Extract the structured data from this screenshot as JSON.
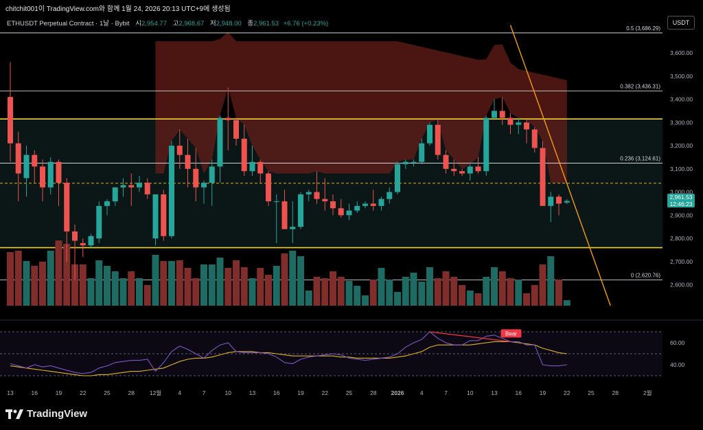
{
  "caption": "chitchit001이 TradingView.com와 함께 1월 24, 2026 20:13 UTC+9에 생성됨",
  "legend": {
    "symbol": "ETHUSDT Perpetual Contract · 1날 · Bybit",
    "open_label": "시",
    "open": "2,954.77",
    "high_label": "고",
    "high": "2,968.67",
    "low_label": "저",
    "low": "2,948.00",
    "close_label": "종",
    "close": "2,961.53",
    "change": "+6.76 (+0.23%)"
  },
  "currency_button": "USDT",
  "price_tag": {
    "price": "2,961.53",
    "countdown": "12:46:23"
  },
  "brand": {
    "name": "TradingView"
  },
  "colors": {
    "up": "#26a69a",
    "down": "#ef5350",
    "fib": "#d1d4dc",
    "channel": "#f2d13b",
    "trend": "#f59e0b",
    "rsi": "#7e57c2",
    "rsi_ma": "#e0b422",
    "bear_label": "#f23645"
  },
  "chart_data": {
    "type": "candlestick",
    "price_axis": {
      "ylim": [
        2510,
        3680
      ],
      "ticks": [
        2600,
        2700,
        2800,
        2900,
        3000,
        3100,
        3200,
        3300,
        3400,
        3500,
        3600
      ],
      "tick_labels": [
        "2,600.00",
        "2,700.00",
        "2,800.00",
        "2,900.00",
        "3,000.00",
        "3,100.00",
        "3,200.00",
        "3,300.00",
        "3,400.00",
        "3,500.00",
        "3,600.00"
      ]
    },
    "time_axis": {
      "labels": [
        {
          "i": 0,
          "t": "13"
        },
        {
          "i": 3,
          "t": "16"
        },
        {
          "i": 6,
          "t": "19"
        },
        {
          "i": 9,
          "t": "22"
        },
        {
          "i": 12,
          "t": "25"
        },
        {
          "i": 15,
          "t": "28"
        },
        {
          "i": 18,
          "t": "12월"
        },
        {
          "i": 21,
          "t": "4"
        },
        {
          "i": 24,
          "t": "7"
        },
        {
          "i": 27,
          "t": "10"
        },
        {
          "i": 30,
          "t": "13"
        },
        {
          "i": 33,
          "t": "16"
        },
        {
          "i": 36,
          "t": "19"
        },
        {
          "i": 39,
          "t": "22"
        },
        {
          "i": 42,
          "t": "25"
        },
        {
          "i": 45,
          "t": "28"
        },
        {
          "i": 48,
          "t": "2026"
        },
        {
          "i": 51,
          "t": "4"
        },
        {
          "i": 54,
          "t": "7"
        },
        {
          "i": 57,
          "t": "10"
        },
        {
          "i": 60,
          "t": "13"
        },
        {
          "i": 63,
          "t": "16"
        },
        {
          "i": 66,
          "t": "19"
        },
        {
          "i": 69,
          "t": "22"
        },
        {
          "i": 72,
          "t": "25"
        },
        {
          "i": 75,
          "t": "28"
        },
        {
          "i": 79,
          "t": "2월"
        }
      ]
    },
    "fib_levels": [
      {
        "label": "0.5 (3,686.29)",
        "price": 3686.29
      },
      {
        "label": "0.382 (3,436.31)",
        "price": 3436.31
      },
      {
        "label": "0.236 (3,124.61)",
        "price": 3124.61
      },
      {
        "label": "0 (2,620.76)",
        "price": 2620.76
      }
    ],
    "channel_lines": [
      3315,
      2760
    ],
    "dashed_level": 3038,
    "trendline": [
      {
        "i": 62,
        "price": 3720
      },
      {
        "i": 74.5,
        "price": 2500
      }
    ],
    "ohlc": [
      [
        3410,
        3560,
        3130,
        3210
      ],
      [
        3210,
        3260,
        2960,
        3080
      ],
      [
        3060,
        3200,
        2980,
        3160
      ],
      [
        3160,
        3180,
        3040,
        3110
      ],
      [
        3110,
        3140,
        2960,
        3020
      ],
      [
        3020,
        3150,
        2990,
        3130
      ],
      [
        3130,
        3140,
        2940,
        3040
      ],
      [
        3040,
        3060,
        2700,
        2830
      ],
      [
        2830,
        2860,
        2620,
        2790
      ],
      [
        2780,
        2800,
        2720,
        2770
      ],
      [
        2770,
        2820,
        2760,
        2810
      ],
      [
        2800,
        2960,
        2780,
        2940
      ],
      [
        2940,
        2970,
        2900,
        2960
      ],
      [
        2960,
        3020,
        2940,
        3020
      ],
      [
        3020,
        3060,
        2980,
        3030
      ],
      [
        3030,
        3080,
        2940,
        3020
      ],
      [
        3020,
        3070,
        3000,
        3040
      ],
      [
        3040,
        3060,
        2970,
        2990
      ],
      [
        2800,
        2990,
        2770,
        2990
      ],
      [
        2990,
        3010,
        2790,
        2810
      ],
      [
        2810,
        3220,
        2800,
        3200
      ],
      [
        3200,
        3270,
        3100,
        3160
      ],
      [
        3160,
        3230,
        3020,
        3100
      ],
      [
        3100,
        3190,
        2960,
        3020
      ],
      [
        3020,
        3050,
        2950,
        3040
      ],
      [
        3040,
        3140,
        2940,
        3110
      ],
      [
        3110,
        3330,
        3040,
        3320
      ],
      [
        3320,
        3450,
        3180,
        3310
      ],
      [
        3310,
        3320,
        3200,
        3230
      ],
      [
        3230,
        3290,
        3070,
        3090
      ],
      [
        3090,
        3200,
        3070,
        3130
      ],
      [
        3130,
        3140,
        3040,
        3080
      ],
      [
        3080,
        3090,
        2940,
        2960
      ],
      [
        2960,
        2990,
        2780,
        2960
      ],
      [
        2960,
        3010,
        2840,
        2840
      ],
      [
        2840,
        2960,
        2780,
        2850
      ],
      [
        2850,
        3000,
        2840,
        2990
      ],
      [
        2990,
        3010,
        2960,
        3000
      ],
      [
        3000,
        3090,
        2950,
        2970
      ],
      [
        2970,
        3060,
        2920,
        2960
      ],
      [
        2960,
        2990,
        2900,
        2930
      ],
      [
        2930,
        2970,
        2890,
        2900
      ],
      [
        2900,
        2950,
        2880,
        2920
      ],
      [
        2920,
        2960,
        2910,
        2940
      ],
      [
        2940,
        2960,
        2930,
        2950
      ],
      [
        2950,
        3010,
        2920,
        2940
      ],
      [
        2940,
        2980,
        2920,
        2970
      ],
      [
        2970,
        3020,
        2950,
        3000
      ],
      [
        3000,
        3130,
        2990,
        3120
      ],
      [
        3120,
        3140,
        3100,
        3130
      ],
      [
        3130,
        3140,
        3110,
        3130
      ],
      [
        3130,
        3230,
        3120,
        3210
      ],
      [
        3210,
        3300,
        3200,
        3290
      ],
      [
        3290,
        3310,
        3140,
        3160
      ],
      [
        3160,
        3180,
        3080,
        3100
      ],
      [
        3100,
        3140,
        3070,
        3090
      ],
      [
        3090,
        3100,
        3070,
        3080
      ],
      [
        3080,
        3120,
        3050,
        3110
      ],
      [
        3110,
        3150,
        3080,
        3090
      ],
      [
        3090,
        3330,
        3070,
        3320
      ],
      [
        3320,
        3400,
        3310,
        3350
      ],
      [
        3350,
        3410,
        3290,
        3320
      ],
      [
        3320,
        3340,
        3250,
        3290
      ],
      [
        3290,
        3320,
        3250,
        3300
      ],
      [
        3300,
        3310,
        3210,
        3270
      ],
      [
        3270,
        3280,
        3170,
        3190
      ],
      [
        3190,
        3220,
        2940,
        2940
      ],
      [
        2940,
        3000,
        2870,
        2980
      ],
      [
        2980,
        2990,
        2900,
        2950
      ],
      [
        2954.77,
        2968.67,
        2948.0,
        2961.53
      ]
    ],
    "volume": [
      78,
      80,
      65,
      58,
      64,
      80,
      95,
      90,
      60,
      60,
      40,
      66,
      58,
      50,
      40,
      50,
      40,
      30,
      74,
      65,
      65,
      66,
      55,
      40,
      60,
      60,
      70,
      55,
      66,
      56,
      40,
      55,
      45,
      58,
      76,
      80,
      72,
      22,
      42,
      40,
      50,
      42,
      36,
      29,
      15,
      38,
      55,
      38,
      20,
      42,
      48,
      35,
      56,
      40,
      50,
      42,
      30,
      22,
      18,
      42,
      56,
      50,
      40,
      38,
      18,
      30,
      60,
      72,
      38,
      8
    ],
    "rsi": {
      "ylim": [
        25,
        75
      ],
      "ticks": [
        40,
        60
      ],
      "tick_labels": [
        "40.00",
        "60.00"
      ],
      "bands": [
        30,
        50,
        70
      ],
      "values": [
        41,
        39,
        37,
        40,
        38,
        39,
        37,
        35,
        33,
        32,
        33,
        37,
        39,
        42,
        43,
        44,
        44,
        45,
        34,
        42,
        52,
        57,
        54,
        50,
        46,
        53,
        58,
        60,
        52,
        51,
        51,
        51,
        50,
        47,
        42,
        41,
        45,
        47,
        48,
        49,
        50,
        49,
        46,
        45,
        44,
        45,
        46,
        47,
        50,
        56,
        60,
        63,
        70,
        64,
        60,
        58,
        58,
        62,
        62,
        66,
        67,
        64,
        61,
        61,
        58,
        58,
        40,
        39,
        39,
        40
      ],
      "ma_values": [
        39,
        38,
        37,
        36,
        35,
        34,
        33,
        32,
        31,
        30,
        30,
        31,
        31,
        32,
        33,
        34,
        34,
        35,
        36,
        37,
        40,
        43,
        45,
        46,
        46,
        47,
        49,
        51,
        52,
        52,
        52,
        51,
        51,
        50,
        49,
        48,
        48,
        48,
        48,
        48,
        48,
        47,
        47,
        46,
        46,
        46,
        46,
        46,
        47,
        48,
        50,
        52,
        56,
        58,
        58,
        58,
        58,
        58,
        59,
        60,
        61,
        61,
        61,
        60,
        59,
        58,
        55,
        53,
        51,
        50
      ],
      "divergence": {
        "from": 52,
        "to": 62,
        "label": "Bear"
      }
    }
  }
}
